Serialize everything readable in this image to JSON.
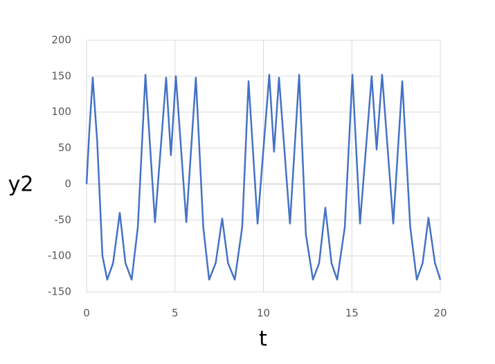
{
  "chart_data": {
    "type": "line",
    "x_label": "t",
    "y_label": "y2",
    "xlim": [
      0,
      20
    ],
    "xticks": [
      0,
      5,
      10,
      15,
      20
    ],
    "ylim": [
      -150,
      200
    ],
    "yticks": [
      -150,
      -100,
      -50,
      0,
      50,
      100,
      150,
      200
    ],
    "grid": true,
    "series": [
      {
        "color": "#4472c4",
        "x": [
          0,
          0.15,
          0.35,
          0.6,
          0.9,
          1.17,
          1.5,
          1.88,
          2.2,
          2.55,
          2.9,
          3.33,
          3.87,
          4.5,
          4.77,
          5.05,
          5.64,
          6.18,
          6.6,
          6.93,
          7.3,
          7.67,
          8.0,
          8.38,
          8.8,
          9.16,
          9.67,
          10.33,
          10.6,
          10.88,
          11.5,
          12.02,
          12.4,
          12.8,
          13.15,
          13.5,
          13.85,
          14.17,
          14.6,
          15.03,
          15.46,
          16.12,
          16.4,
          16.71,
          17.34,
          17.85,
          18.3,
          18.67,
          19.0,
          19.33,
          19.7,
          20
        ],
        "values": [
          0,
          70,
          148,
          60,
          -100,
          -133,
          -110,
          -40,
          -110,
          -133,
          -60,
          152,
          -53,
          148,
          40,
          150,
          -53,
          148,
          -60,
          -133,
          -110,
          -48,
          -110,
          -133,
          -60,
          143,
          -55,
          152,
          45,
          148,
          -55,
          152,
          -70,
          -133,
          -110,
          -33,
          -110,
          -133,
          -60,
          152,
          -55,
          150,
          48,
          152,
          -55,
          143,
          -60,
          -133,
          -110,
          -47,
          -110,
          -133
        ]
      }
    ]
  }
}
